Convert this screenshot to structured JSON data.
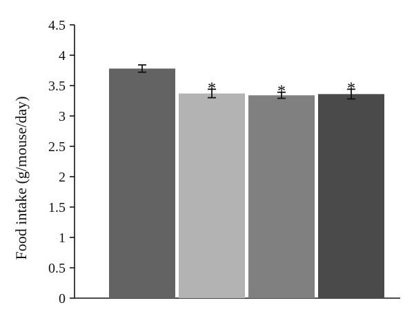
{
  "chart_data": {
    "type": "bar",
    "title": "",
    "xlabel": "",
    "ylabel": "Food intake (g/mouse/day)",
    "ylim": [
      0,
      4.5
    ],
    "yticks": [
      0,
      0.5,
      1,
      1.5,
      2,
      2.5,
      3,
      3.5,
      4,
      4.5
    ],
    "ytick_labels": [
      "0",
      "0.5",
      "1",
      "1.5",
      "2",
      "2.5",
      "3",
      "3.5",
      "4",
      "4.5"
    ],
    "grid": false,
    "legend": "none",
    "bars": [
      {
        "value": 3.78,
        "error": 0.06,
        "color": "#636363",
        "annotation": ""
      },
      {
        "value": 3.37,
        "error": 0.07,
        "color": "#b3b3b3",
        "annotation": "*"
      },
      {
        "value": 3.34,
        "error": 0.05,
        "color": "#808080",
        "annotation": "*"
      },
      {
        "value": 3.36,
        "error": 0.08,
        "color": "#4a4a4a",
        "annotation": "*"
      }
    ]
  }
}
